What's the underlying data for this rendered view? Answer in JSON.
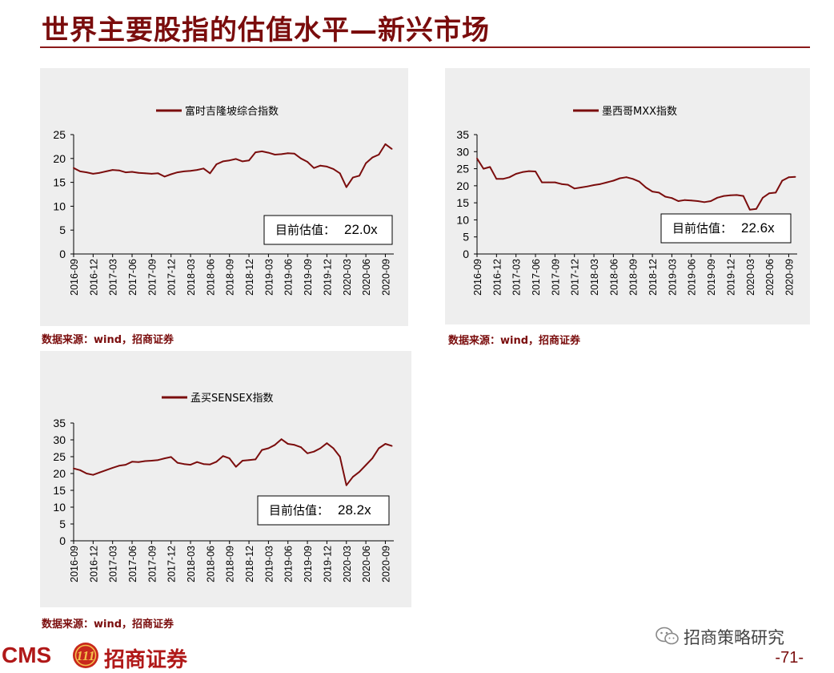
{
  "page": {
    "title": "世界主要股指的估值水平—新兴市场",
    "page_number": "-71-",
    "footer_logo_text": "CMS",
    "footer_logo_badge": "111",
    "footer_brand_cn": "招商证券",
    "wechat_account": "招商策略研究"
  },
  "colors": {
    "accent": "#7a0c0c",
    "series_line": "#7b0d0d",
    "panel_bg": "#eeeeee"
  },
  "chart_data": [
    {
      "type": "line",
      "legend": "富时吉隆坡综合指数",
      "annotation_label": "目前估值：",
      "annotation_value": "22.0x",
      "source": "数据来源：wind，招商证券",
      "ylim": [
        0,
        25
      ],
      "yticks": [
        0,
        5,
        10,
        15,
        20,
        25
      ],
      "xtick_labels": [
        "2016-09",
        "2016-12",
        "2017-03",
        "2017-06",
        "2017-09",
        "2017-12",
        "2018-03",
        "2018-06",
        "2018-09",
        "2018-12",
        "2019-03",
        "2019-06",
        "2019-09",
        "2019-12",
        "2020-03",
        "2020-06",
        "2020-09"
      ],
      "x": [
        "2016-09",
        "2016-10",
        "2016-11",
        "2016-12",
        "2017-01",
        "2017-02",
        "2017-03",
        "2017-04",
        "2017-05",
        "2017-06",
        "2017-07",
        "2017-08",
        "2017-09",
        "2017-10",
        "2017-11",
        "2017-12",
        "2018-01",
        "2018-02",
        "2018-03",
        "2018-04",
        "2018-05",
        "2018-06",
        "2018-07",
        "2018-08",
        "2018-09",
        "2018-10",
        "2018-11",
        "2018-12",
        "2019-01",
        "2019-02",
        "2019-03",
        "2019-04",
        "2019-05",
        "2019-06",
        "2019-07",
        "2019-08",
        "2019-09",
        "2019-10",
        "2019-11",
        "2019-12",
        "2020-01",
        "2020-02",
        "2020-03",
        "2020-04",
        "2020-05",
        "2020-06",
        "2020-07",
        "2020-08",
        "2020-09",
        "2020-10"
      ],
      "values": [
        18.0,
        17.3,
        17.1,
        16.8,
        17.0,
        17.3,
        17.6,
        17.5,
        17.1,
        17.2,
        17.0,
        16.9,
        16.8,
        16.9,
        16.2,
        16.7,
        17.1,
        17.3,
        17.4,
        17.6,
        17.9,
        16.9,
        18.8,
        19.4,
        19.6,
        19.9,
        19.4,
        19.6,
        21.3,
        21.5,
        21.2,
        20.8,
        20.9,
        21.1,
        21.0,
        20.0,
        19.3,
        18.0,
        18.5,
        18.3,
        17.8,
        16.9,
        14.0,
        16.0,
        16.4,
        19.0,
        20.2,
        20.8,
        23.0,
        22.0
      ]
    },
    {
      "type": "line",
      "legend": "墨西哥MXX指数",
      "annotation_label": "目前估值：",
      "annotation_value": "22.6x",
      "source": "数据来源：wind，招商证券",
      "ylim": [
        0,
        35
      ],
      "yticks": [
        0,
        5,
        10,
        15,
        20,
        25,
        30,
        35
      ],
      "xtick_labels": [
        "2016-09",
        "2016-12",
        "2017-03",
        "2017-06",
        "2017-09",
        "2017-12",
        "2018-03",
        "2018-06",
        "2018-09",
        "2018-12",
        "2019-03",
        "2019-06",
        "2019-09",
        "2019-12",
        "2020-03",
        "2020-06",
        "2020-09"
      ],
      "x": [
        "2016-09",
        "2016-10",
        "2016-11",
        "2016-12",
        "2017-01",
        "2017-02",
        "2017-03",
        "2017-04",
        "2017-05",
        "2017-06",
        "2017-07",
        "2017-08",
        "2017-09",
        "2017-10",
        "2017-11",
        "2017-12",
        "2018-01",
        "2018-02",
        "2018-03",
        "2018-04",
        "2018-05",
        "2018-06",
        "2018-07",
        "2018-08",
        "2018-09",
        "2018-10",
        "2018-11",
        "2018-12",
        "2019-01",
        "2019-02",
        "2019-03",
        "2019-04",
        "2019-05",
        "2019-06",
        "2019-07",
        "2019-08",
        "2019-09",
        "2019-10",
        "2019-11",
        "2019-12",
        "2020-01",
        "2020-02",
        "2020-03",
        "2020-04",
        "2020-05",
        "2020-06",
        "2020-07",
        "2020-08",
        "2020-09",
        "2020-10"
      ],
      "values": [
        28.0,
        25.0,
        25.5,
        22.0,
        22.0,
        22.5,
        23.5,
        24.0,
        24.3,
        24.2,
        21.0,
        21.0,
        21.0,
        20.5,
        20.3,
        19.2,
        19.5,
        19.8,
        20.2,
        20.5,
        21.0,
        21.5,
        22.2,
        22.5,
        22.0,
        21.2,
        19.5,
        18.3,
        18.0,
        16.8,
        16.4,
        15.5,
        15.8,
        15.7,
        15.5,
        15.2,
        15.5,
        16.5,
        17.0,
        17.2,
        17.3,
        17.0,
        13.0,
        13.2,
        16.5,
        17.8,
        18.0,
        21.5,
        22.5,
        22.6
      ]
    },
    {
      "type": "line",
      "legend": "孟买SENSEX指数",
      "annotation_label": "目前估值：",
      "annotation_value": "28.2x",
      "source": "数据来源：wind，招商证券",
      "ylim": [
        0,
        35
      ],
      "yticks": [
        0,
        5,
        10,
        15,
        20,
        25,
        30,
        35
      ],
      "xtick_labels": [
        "2016-09",
        "2016-12",
        "2017-03",
        "2017-06",
        "2017-09",
        "2017-12",
        "2018-03",
        "2018-06",
        "2018-09",
        "2018-12",
        "2019-03",
        "2019-06",
        "2019-09",
        "2019-12",
        "2020-03",
        "2020-06",
        "2020-09"
      ],
      "x": [
        "2016-09",
        "2016-10",
        "2016-11",
        "2016-12",
        "2017-01",
        "2017-02",
        "2017-03",
        "2017-04",
        "2017-05",
        "2017-06",
        "2017-07",
        "2017-08",
        "2017-09",
        "2017-10",
        "2017-11",
        "2017-12",
        "2018-01",
        "2018-02",
        "2018-03",
        "2018-04",
        "2018-05",
        "2018-06",
        "2018-07",
        "2018-08",
        "2018-09",
        "2018-10",
        "2018-11",
        "2018-12",
        "2019-01",
        "2019-02",
        "2019-03",
        "2019-04",
        "2019-05",
        "2019-06",
        "2019-07",
        "2019-08",
        "2019-09",
        "2019-10",
        "2019-11",
        "2019-12",
        "2020-01",
        "2020-02",
        "2020-03",
        "2020-04",
        "2020-05",
        "2020-06",
        "2020-07",
        "2020-08",
        "2020-09",
        "2020-10"
      ],
      "values": [
        21.5,
        21.0,
        20.0,
        19.6,
        20.3,
        21.0,
        21.7,
        22.3,
        22.6,
        23.5,
        23.4,
        23.7,
        23.8,
        24.0,
        24.5,
        24.9,
        23.2,
        22.8,
        22.6,
        23.4,
        22.8,
        22.7,
        23.5,
        25.2,
        24.5,
        22.0,
        23.8,
        24.0,
        24.2,
        27.0,
        27.5,
        28.5,
        30.2,
        28.8,
        28.5,
        27.8,
        26.0,
        26.5,
        27.5,
        29.0,
        27.5,
        25.0,
        16.5,
        19.0,
        20.5,
        22.5,
        24.5,
        27.5,
        28.8,
        28.2
      ]
    }
  ]
}
